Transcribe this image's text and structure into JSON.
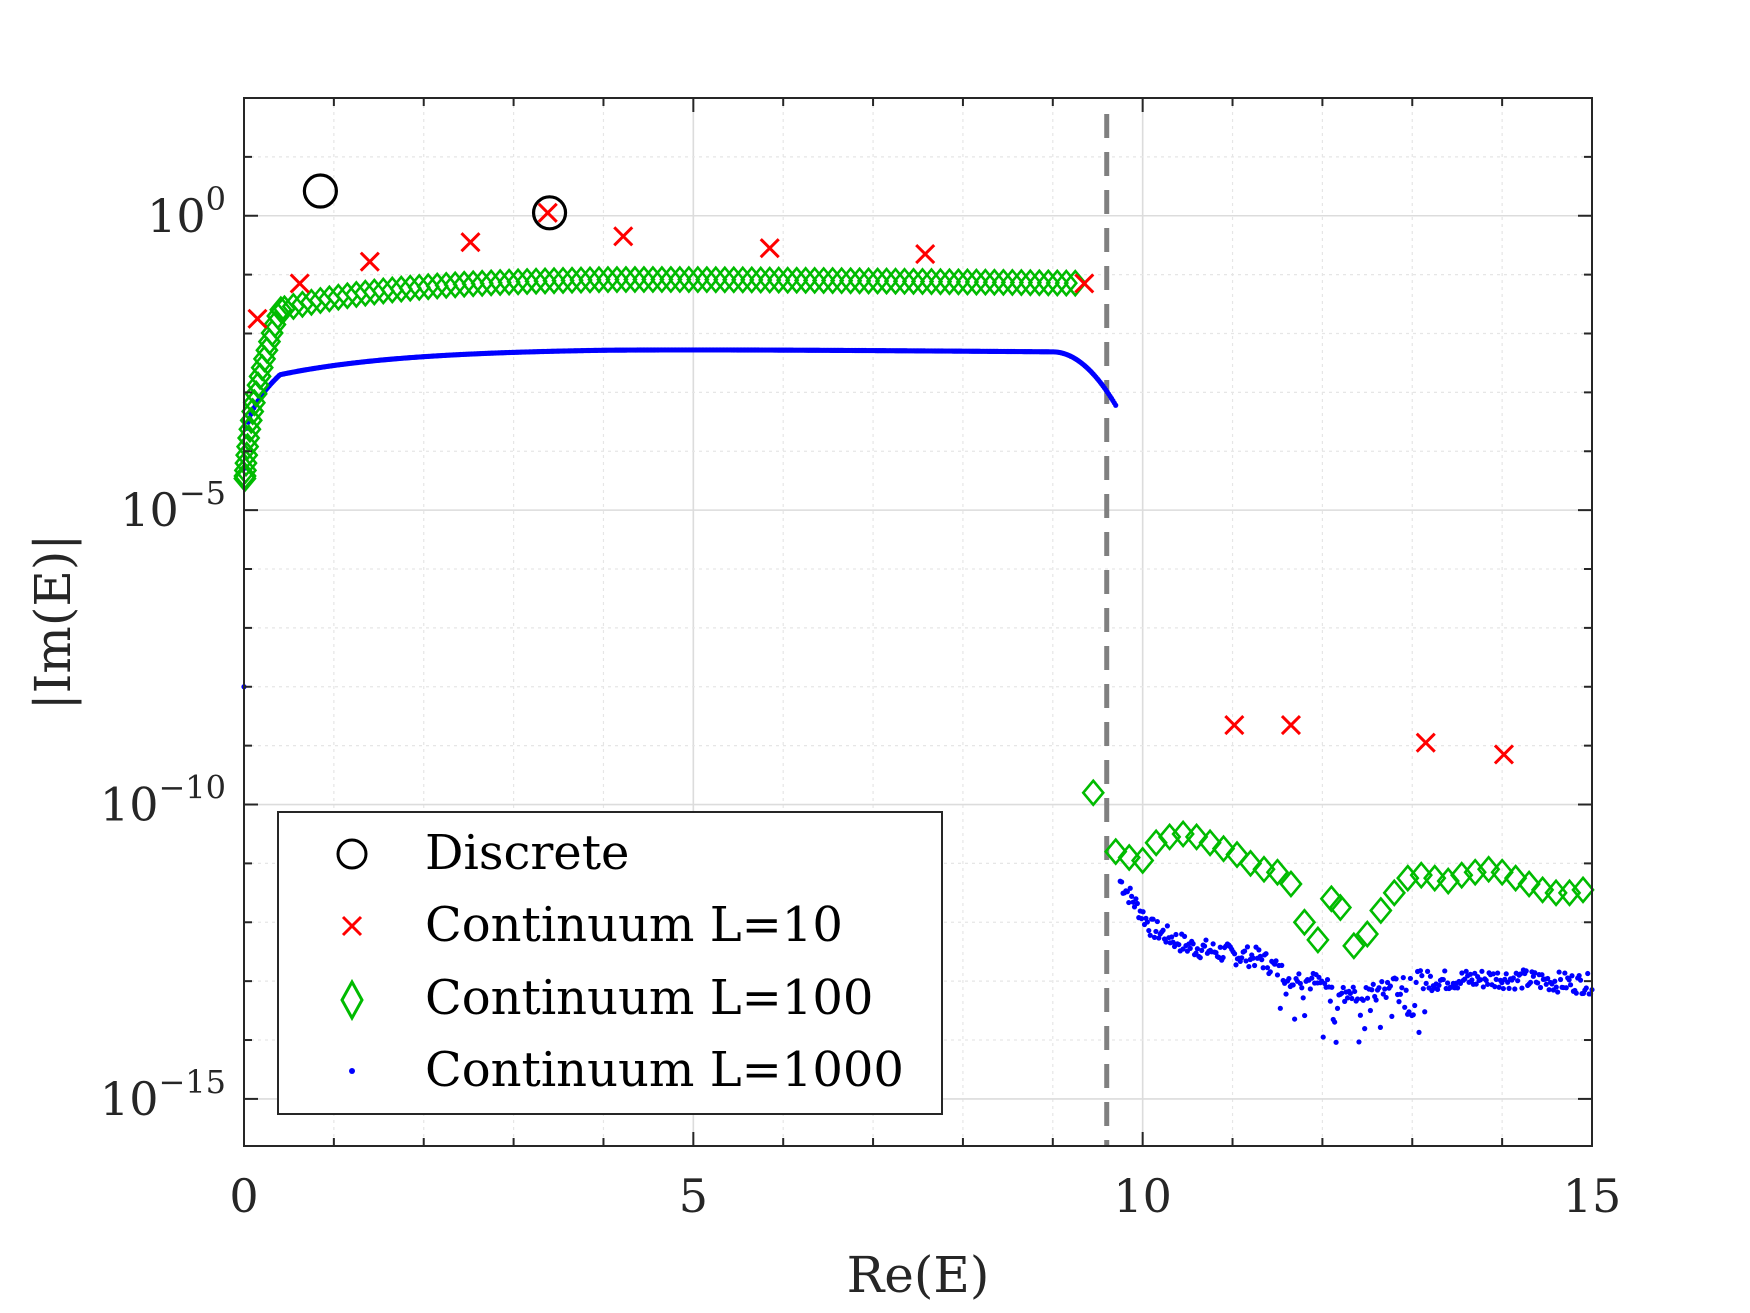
{
  "chart_data": {
    "type": "scatter",
    "title": "",
    "xlabel": "Re(E)",
    "ylabel": "|Im(E)|",
    "xlim": [
      0,
      15
    ],
    "ylim_log10": [
      -15.8,
      2
    ],
    "yscale": "log",
    "grid": true,
    "legend_position": "bottom-left",
    "x_ticks": [
      {
        "value": 0,
        "label": "0"
      },
      {
        "value": 5,
        "label": "5"
      },
      {
        "value": 10,
        "label": "10"
      },
      {
        "value": 15,
        "label": "15"
      }
    ],
    "y_ticks": [
      {
        "log10": 0,
        "base": "10",
        "exp": "0"
      },
      {
        "log10": -5,
        "base": "10",
        "exp": "−5"
      },
      {
        "log10": -10,
        "base": "10",
        "exp": "−10"
      },
      {
        "log10": -15,
        "base": "10",
        "exp": "−15"
      }
    ],
    "threshold_line": {
      "x": 9.6,
      "style": "dashed",
      "color": "#808080"
    },
    "series": [
      {
        "name": "Discrete",
        "marker": "circle",
        "color": "#000000",
        "points": [
          [
            0.85,
            0.42
          ],
          [
            3.4,
            0.05
          ]
        ]
      },
      {
        "name": "Continuum L=10",
        "marker": "x",
        "color": "#ff0000",
        "points": [
          [
            0.15,
            -1.75
          ],
          [
            0.62,
            -1.15
          ],
          [
            1.4,
            -0.78
          ],
          [
            2.52,
            -0.45
          ],
          [
            3.38,
            0.05
          ],
          [
            4.22,
            -0.35
          ],
          [
            5.85,
            -0.55
          ],
          [
            7.58,
            -0.65
          ],
          [
            9.35,
            -1.15
          ],
          [
            11.02,
            -8.65
          ],
          [
            11.65,
            -8.65
          ],
          [
            13.15,
            -8.95
          ],
          [
            14.02,
            -9.15
          ]
        ]
      },
      {
        "name": "Continuum L=100",
        "marker": "diamond",
        "color": "#00bb00",
        "curve": "main-band",
        "tail": [
          [
            9.45,
            -9.8
          ],
          [
            9.7,
            -10.8
          ],
          [
            9.85,
            -10.9
          ],
          [
            10.0,
            -10.95
          ],
          [
            10.15,
            -10.65
          ],
          [
            10.3,
            -10.55
          ],
          [
            10.45,
            -10.5
          ],
          [
            10.6,
            -10.55
          ],
          [
            10.75,
            -10.65
          ],
          [
            10.9,
            -10.75
          ],
          [
            11.05,
            -10.85
          ],
          [
            11.2,
            -11.0
          ],
          [
            11.35,
            -11.1
          ],
          [
            11.5,
            -11.15
          ],
          [
            11.65,
            -11.35
          ],
          [
            11.8,
            -12.0
          ],
          [
            11.95,
            -12.3
          ],
          [
            12.1,
            -11.6
          ],
          [
            12.2,
            -11.75
          ],
          [
            12.35,
            -12.4
          ],
          [
            12.5,
            -12.2
          ],
          [
            12.65,
            -11.8
          ],
          [
            12.8,
            -11.5
          ],
          [
            12.95,
            -11.25
          ],
          [
            13.1,
            -11.2
          ],
          [
            13.25,
            -11.25
          ],
          [
            13.4,
            -11.3
          ],
          [
            13.55,
            -11.2
          ],
          [
            13.7,
            -11.15
          ],
          [
            13.85,
            -11.1
          ],
          [
            14.0,
            -11.15
          ],
          [
            14.15,
            -11.25
          ],
          [
            14.3,
            -11.35
          ],
          [
            14.45,
            -11.45
          ],
          [
            14.6,
            -11.5
          ],
          [
            14.75,
            -11.5
          ],
          [
            14.9,
            -11.45
          ]
        ]
      },
      {
        "name": "Continuum L=1000",
        "marker": "dot",
        "color": "#0000ff",
        "curve": "main-band",
        "tail_anchors": [
          [
            9.75,
            -11.3
          ],
          [
            10.1,
            -12.1
          ],
          [
            10.5,
            -12.4
          ],
          [
            11.0,
            -12.55
          ],
          [
            11.3,
            -12.6
          ],
          [
            11.6,
            -12.9
          ],
          [
            12.0,
            -13.05
          ],
          [
            12.5,
            -13.25
          ],
          [
            13.0,
            -13.0
          ],
          [
            14.0,
            -12.95
          ],
          [
            15.0,
            -13.05
          ]
        ]
      }
    ],
    "legend": [
      {
        "label": "Discrete",
        "marker": "circle"
      },
      {
        "label": "Continuum L=10",
        "marker": "x"
      },
      {
        "label": "Continuum L=100",
        "marker": "diamond"
      },
      {
        "label": "Continuum L=1000",
        "marker": "dot"
      }
    ]
  }
}
